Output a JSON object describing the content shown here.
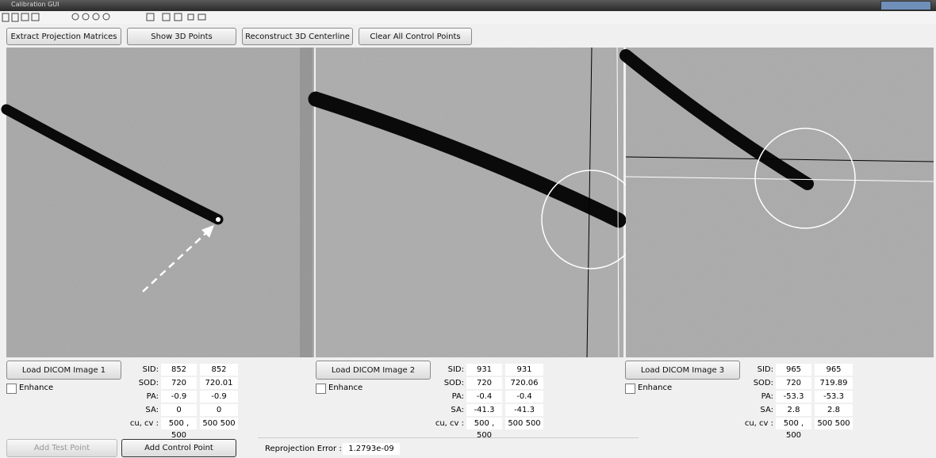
{
  "window": {
    "title": "Calibration GUI"
  },
  "toolbar": {
    "buttons": [
      "Extract Projection Matrices",
      "Show 3D Points",
      "Reconstruct 3D Centerline",
      "Clear All Control Points"
    ]
  },
  "panels": [
    {
      "load_button": "Load DICOM Image 1",
      "enhance": "Enhance",
      "params": [
        [
          "SID:",
          "852",
          "852"
        ],
        [
          "SOD:",
          "720",
          "720.01"
        ],
        [
          "PA:",
          "-0.9",
          "-0.9"
        ],
        [
          "SA:",
          "0",
          "0"
        ],
        [
          "cu, cv :",
          "500 , 500",
          "500  500"
        ]
      ]
    },
    {
      "load_button": "Load DICOM Image 2",
      "enhance": "Enhance",
      "params": [
        [
          "SID:",
          "931",
          "931"
        ],
        [
          "SOD:",
          "720",
          "720.06"
        ],
        [
          "PA:",
          "-0.4",
          "-0.4"
        ],
        [
          "SA:",
          "-41.3",
          "-41.3"
        ],
        [
          "cu, cv :",
          "500 , 500",
          "500  500"
        ]
      ]
    },
    {
      "load_button": "Load DICOM Image 3",
      "enhance": "Enhance",
      "params": [
        [
          "SID:",
          "965",
          "965"
        ],
        [
          "SOD:",
          "720",
          "719.89"
        ],
        [
          "PA:",
          "-53.3",
          "-53.3"
        ],
        [
          "SA:",
          "2.8",
          "2.8"
        ],
        [
          "cu, cv :",
          "500 , 500",
          "500  500"
        ]
      ]
    }
  ],
  "footer": {
    "add_test_point": "Add Test Point",
    "add_control_point": "Add Control Point",
    "reprojection_label": "Reprojection Error :",
    "reprojection_value": "1.2793e-09"
  }
}
